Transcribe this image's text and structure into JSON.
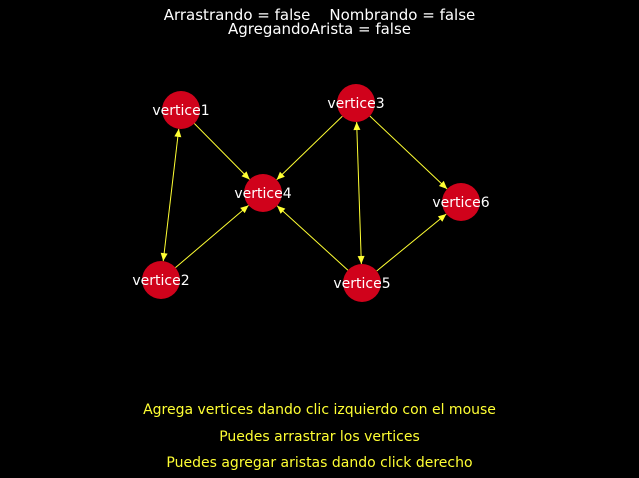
{
  "status": {
    "dragging": "Arrastrando = false",
    "naming": "Nombrando = false",
    "adding_edge": "AgregandoArista = false"
  },
  "help": {
    "line1": "Agrega vertices dando clic izquierdo con el mouse",
    "line2": "Puedes arrastrar los vertices",
    "line3": "Puedes agregar aristas dando click derecho"
  },
  "colors": {
    "background": "#000000",
    "vertex": "#d0021b",
    "edge": "#ffff33",
    "status_text": "#ffffff",
    "help_text": "#ffff33",
    "label_text": "#ffffff"
  },
  "graph": {
    "vertices": [
      {
        "id": "v1",
        "label": "vertice1"
      },
      {
        "id": "v2",
        "label": "vertice2"
      },
      {
        "id": "v3",
        "label": "vertice3"
      },
      {
        "id": "v4",
        "label": "vertice4"
      },
      {
        "id": "v5",
        "label": "vertice5"
      },
      {
        "id": "v6",
        "label": "vertice6"
      }
    ],
    "edges": [
      {
        "from": "v1",
        "to": "v4",
        "bidirectional": false
      },
      {
        "from": "v1",
        "to": "v2",
        "bidirectional": true
      },
      {
        "from": "v2",
        "to": "v4",
        "bidirectional": false
      },
      {
        "from": "v3",
        "to": "v4",
        "bidirectional": false
      },
      {
        "from": "v3",
        "to": "v5",
        "bidirectional": true
      },
      {
        "from": "v3",
        "to": "v6",
        "bidirectional": false
      },
      {
        "from": "v5",
        "to": "v4",
        "bidirectional": false
      },
      {
        "from": "v5",
        "to": "v6",
        "bidirectional": false
      }
    ]
  }
}
